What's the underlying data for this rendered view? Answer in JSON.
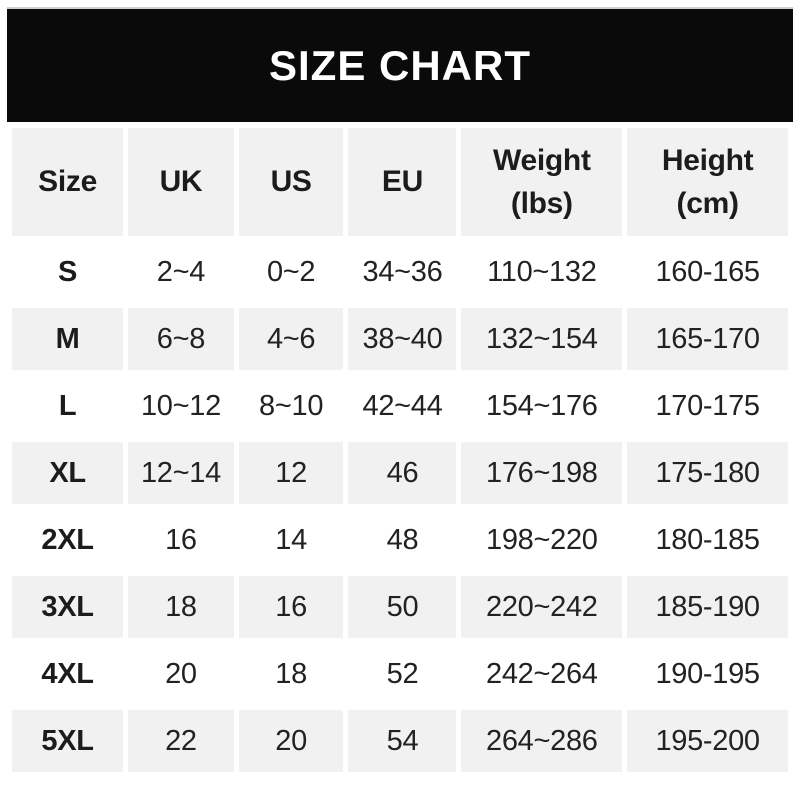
{
  "banner": {
    "title": "SIZE CHART"
  },
  "colors": {
    "banner_bg": "#0a0a0a",
    "banner_text": "#ffffff",
    "row_alt_bg": "#f1f1f1",
    "row_bg": "#ffffff",
    "cell_text": "#222224"
  },
  "chart_data": {
    "type": "table",
    "title": "SIZE CHART",
    "columns": [
      "Size",
      "UK",
      "US",
      "EU",
      "Weight\n(lbs)",
      "Height\n(cm)"
    ],
    "rows": [
      [
        "S",
        "2~4",
        "0~2",
        "34~36",
        "110~132",
        "160-165"
      ],
      [
        "M",
        "6~8",
        "4~6",
        "38~40",
        "132~154",
        "165-170"
      ],
      [
        "L",
        "10~12",
        "8~10",
        "42~44",
        "154~176",
        "170-175"
      ],
      [
        "XL",
        "12~14",
        "12",
        "46",
        "176~198",
        "175-180"
      ],
      [
        "2XL",
        "16",
        "14",
        "48",
        "198~220",
        "180-185"
      ],
      [
        "3XL",
        "18",
        "16",
        "50",
        "220~242",
        "185-190"
      ],
      [
        "4XL",
        "20",
        "18",
        "52",
        "242~264",
        "190-195"
      ],
      [
        "5XL",
        "22",
        "20",
        "54",
        "264~286",
        "195-200"
      ]
    ]
  }
}
